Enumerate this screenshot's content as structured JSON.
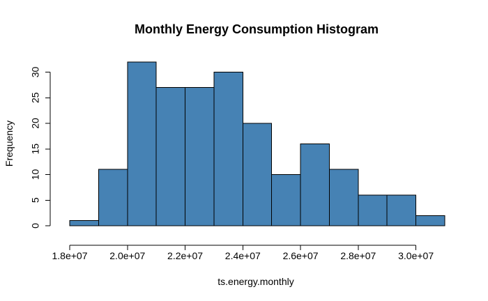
{
  "chart_data": {
    "type": "bar",
    "title": "Monthly Energy Consumption Histogram",
    "xlabel": "ts.energy.monthly",
    "ylabel": "Frequency",
    "bin_edges": [
      18000000,
      19000000,
      20000000,
      21000000,
      22000000,
      23000000,
      24000000,
      25000000,
      26000000,
      27000000,
      28000000,
      29000000,
      30000000,
      31000000
    ],
    "values": [
      1,
      11,
      32,
      27,
      27,
      30,
      20,
      10,
      16,
      11,
      6,
      6,
      2
    ],
    "xlim": [
      18000000,
      31000000
    ],
    "ylim": [
      0,
      32
    ],
    "x_ticks": [
      {
        "value": 18000000,
        "label": "1.8e+07"
      },
      {
        "value": 20000000,
        "label": "2.0e+07"
      },
      {
        "value": 22000000,
        "label": "2.2e+07"
      },
      {
        "value": 24000000,
        "label": "2.4e+07"
      },
      {
        "value": 26000000,
        "label": "2.6e+07"
      },
      {
        "value": 28000000,
        "label": "2.8e+07"
      },
      {
        "value": 30000000,
        "label": "3.0e+07"
      }
    ],
    "y_ticks": [
      {
        "value": 0,
        "label": "0"
      },
      {
        "value": 5,
        "label": "5"
      },
      {
        "value": 10,
        "label": "10"
      },
      {
        "value": 15,
        "label": "15"
      },
      {
        "value": 20,
        "label": "20"
      },
      {
        "value": 25,
        "label": "25"
      },
      {
        "value": 30,
        "label": "30"
      }
    ],
    "bar_color": "#4682b4",
    "bar_border_color": "#000000",
    "grid": false,
    "legend": "none"
  }
}
